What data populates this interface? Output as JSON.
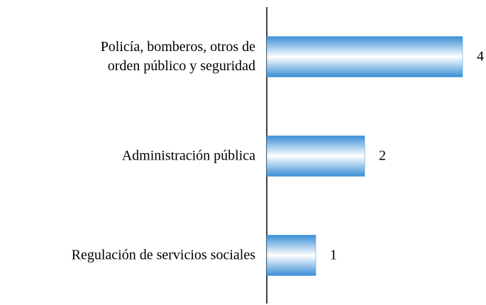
{
  "chart_data": {
    "type": "barh",
    "categories": [
      "Policía, bomberos, otros de\norden público y seguridad",
      "Administración pública",
      "Regulación de servicios sociales"
    ],
    "values": [
      4,
      2,
      1
    ],
    "color": "#3a8fd6",
    "xlim": [
      0,
      4
    ]
  }
}
